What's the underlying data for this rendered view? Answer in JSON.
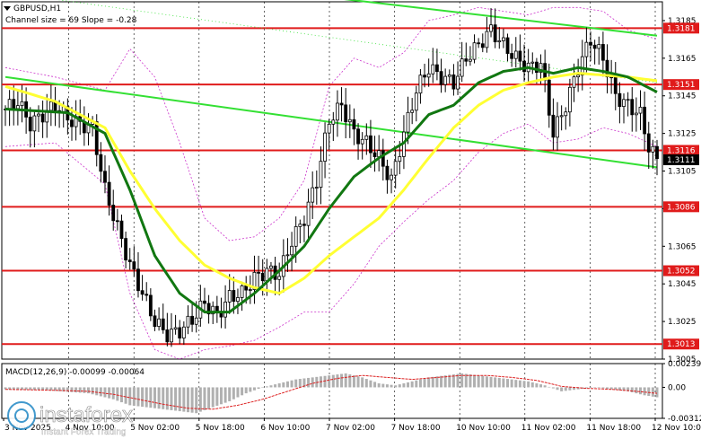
{
  "main": {
    "symbol_line": "GBPUSD,H1",
    "channel_line": "Channel size = 69 Slope = -0.28",
    "current_price": "1.3111"
  },
  "watermark": {
    "brand": "instaforex",
    "tagline": "Instant Forex Trading"
  },
  "colors": {
    "bg": "#ffffff",
    "level_line": "#e01b1b",
    "channel": "#33e033",
    "ma_slow": "#ffff33",
    "ma_fast": "#117711",
    "candle": "#000000",
    "bands": "#cc33cc",
    "macd_hist": "#b0b0b0",
    "macd_signal": "#dd2222"
  },
  "chart_data": [
    {
      "type": "candlestick",
      "symbol": "GBPUSD",
      "timeframe": "H1",
      "ylim": [
        1.3005,
        1.3195
      ],
      "y_ticks": [
        "1.3185",
        "1.3165",
        "1.3145",
        "1.3125",
        "1.3105",
        "1.3085",
        "1.3065",
        "1.3045",
        "1.3025",
        "1.3005"
      ],
      "x_ticks": [
        "3 Nov 2025",
        "4 Nov 10:00",
        "5 Nov 02:00",
        "5 Nov 18:00",
        "6 Nov 10:00",
        "7 Nov 02:00",
        "7 Nov 18:00",
        "10 Nov 10:00",
        "11 Nov 02:00",
        "11 Nov 18:00",
        "12 Nov 10:00"
      ],
      "levels": [
        {
          "value": 1.3181,
          "label": "1.3181"
        },
        {
          "value": 1.3151,
          "label": "1.3151"
        },
        {
          "value": 1.3116,
          "label": "1.3116"
        },
        {
          "value": 1.3086,
          "label": "1.3086"
        },
        {
          "value": 1.3052,
          "label": "1.3052"
        },
        {
          "value": 1.3013,
          "label": "1.3013"
        }
      ],
      "current_price": 1.3111,
      "close_path": [
        [
          0,
          1.3138
        ],
        [
          3,
          1.3142
        ],
        [
          6,
          1.313
        ],
        [
          9,
          1.3135
        ],
        [
          12,
          1.314
        ],
        [
          15,
          1.3133
        ],
        [
          18,
          1.313
        ],
        [
          21,
          1.3128
        ],
        [
          24,
          1.3095
        ],
        [
          27,
          1.3075
        ],
        [
          30,
          1.3055
        ],
        [
          33,
          1.304
        ],
        [
          36,
          1.3025
        ],
        [
          39,
          1.3018
        ],
        [
          42,
          1.302
        ],
        [
          45,
          1.3026
        ],
        [
          48,
          1.3035
        ],
        [
          51,
          1.3028
        ],
        [
          54,
          1.3038
        ],
        [
          57,
          1.304
        ],
        [
          60,
          1.3048
        ],
        [
          63,
          1.3052
        ],
        [
          66,
          1.305
        ],
        [
          69,
          1.3068
        ],
        [
          72,
          1.308
        ],
        [
          75,
          1.31
        ],
        [
          78,
          1.3132
        ],
        [
          81,
          1.314
        ],
        [
          84,
          1.3125
        ],
        [
          87,
          1.312
        ],
        [
          90,
          1.3112
        ],
        [
          93,
          1.31
        ],
        [
          96,
          1.3125
        ],
        [
          99,
          1.3148
        ],
        [
          102,
          1.316
        ],
        [
          105,
          1.3155
        ],
        [
          108,
          1.3152
        ],
        [
          111,
          1.3165
        ],
        [
          114,
          1.3172
        ],
        [
          117,
          1.318
        ],
        [
          120,
          1.3172
        ],
        [
          123,
          1.3165
        ],
        [
          126,
          1.316
        ],
        [
          129,
          1.3162
        ],
        [
          132,
          1.3125
        ],
        [
          135,
          1.314
        ],
        [
          138,
          1.316
        ],
        [
          141,
          1.3175
        ],
        [
          144,
          1.3165
        ],
        [
          147,
          1.3145
        ],
        [
          150,
          1.314
        ],
        [
          153,
          1.3135
        ],
        [
          155,
          1.3118
        ],
        [
          157,
          1.3111
        ]
      ],
      "n_bars": 158,
      "ma_fast": [
        [
          0,
          1.3138
        ],
        [
          15,
          1.3136
        ],
        [
          24,
          1.3125
        ],
        [
          30,
          1.3095
        ],
        [
          36,
          1.306
        ],
        [
          42,
          1.304
        ],
        [
          48,
          1.303
        ],
        [
          54,
          1.303
        ],
        [
          60,
          1.304
        ],
        [
          66,
          1.3052
        ],
        [
          72,
          1.3065
        ],
        [
          78,
          1.3085
        ],
        [
          84,
          1.3102
        ],
        [
          90,
          1.3112
        ],
        [
          96,
          1.312
        ],
        [
          102,
          1.3135
        ],
        [
          108,
          1.314
        ],
        [
          114,
          1.3152
        ],
        [
          120,
          1.3158
        ],
        [
          126,
          1.316
        ],
        [
          132,
          1.3157
        ],
        [
          138,
          1.316
        ],
        [
          144,
          1.3158
        ],
        [
          150,
          1.3155
        ],
        [
          157,
          1.3147
        ]
      ],
      "ma_slow": [
        [
          0,
          1.315
        ],
        [
          12,
          1.3142
        ],
        [
          24,
          1.3128
        ],
        [
          30,
          1.3105
        ],
        [
          36,
          1.3085
        ],
        [
          42,
          1.3068
        ],
        [
          48,
          1.3055
        ],
        [
          54,
          1.3048
        ],
        [
          60,
          1.3043
        ],
        [
          66,
          1.304
        ],
        [
          72,
          1.3048
        ],
        [
          78,
          1.306
        ],
        [
          84,
          1.307
        ],
        [
          90,
          1.308
        ],
        [
          96,
          1.3095
        ],
        [
          102,
          1.3112
        ],
        [
          108,
          1.3128
        ],
        [
          114,
          1.314
        ],
        [
          120,
          1.3148
        ],
        [
          126,
          1.3152
        ],
        [
          132,
          1.3155
        ],
        [
          138,
          1.3157
        ],
        [
          144,
          1.3156
        ],
        [
          150,
          1.3155
        ],
        [
          157,
          1.3153
        ]
      ],
      "band_upper": [
        [
          0,
          1.316
        ],
        [
          12,
          1.3155
        ],
        [
          24,
          1.3148
        ],
        [
          30,
          1.317
        ],
        [
          36,
          1.3155
        ],
        [
          42,
          1.312
        ],
        [
          48,
          1.308
        ],
        [
          54,
          1.3068
        ],
        [
          60,
          1.307
        ],
        [
          66,
          1.308
        ],
        [
          72,
          1.31
        ],
        [
          78,
          1.315
        ],
        [
          84,
          1.3165
        ],
        [
          90,
          1.316
        ],
        [
          96,
          1.3168
        ],
        [
          102,
          1.3185
        ],
        [
          108,
          1.3188
        ],
        [
          114,
          1.3192
        ],
        [
          120,
          1.319
        ],
        [
          126,
          1.3188
        ],
        [
          132,
          1.3192
        ],
        [
          138,
          1.3192
        ],
        [
          144,
          1.319
        ],
        [
          150,
          1.318
        ],
        [
          157,
          1.3175
        ]
      ],
      "band_lower": [
        [
          0,
          1.3118
        ],
        [
          12,
          1.312
        ],
        [
          24,
          1.3098
        ],
        [
          30,
          1.304
        ],
        [
          36,
          1.301
        ],
        [
          42,
          1.3005
        ],
        [
          48,
          1.301
        ],
        [
          54,
          1.3012
        ],
        [
          60,
          1.3015
        ],
        [
          66,
          1.3022
        ],
        [
          72,
          1.303
        ],
        [
          78,
          1.303
        ],
        [
          84,
          1.3045
        ],
        [
          90,
          1.3065
        ],
        [
          96,
          1.3078
        ],
        [
          102,
          1.309
        ],
        [
          108,
          1.31
        ],
        [
          114,
          1.3115
        ],
        [
          120,
          1.3125
        ],
        [
          126,
          1.313
        ],
        [
          132,
          1.312
        ],
        [
          138,
          1.3122
        ],
        [
          144,
          1.3128
        ],
        [
          150,
          1.3125
        ],
        [
          157,
          1.3118
        ]
      ],
      "channel_lines": [
        {
          "from": [
            0,
            1.3155
          ],
          "to": [
            157,
            1.3107
          ]
        },
        {
          "from": [
            60,
            1.3202
          ],
          "to": [
            157,
            1.3177
          ]
        }
      ]
    },
    {
      "type": "macd",
      "title": "MACD(12,26,9) -0.00099 -0.00064",
      "params": [
        12,
        26,
        9
      ],
      "values": {
        "macd": -0.00099,
        "signal": -0.00064
      },
      "ylim": [
        -0.00312,
        0.00239
      ],
      "y_ticks": [
        "0.00239",
        "0.00",
        "-0.00312"
      ],
      "histogram": [
        [
          0,
          -0.0002
        ],
        [
          10,
          -0.0003
        ],
        [
          20,
          -0.0006
        ],
        [
          26,
          -0.0012
        ],
        [
          30,
          -0.0018
        ],
        [
          34,
          -0.002
        ],
        [
          38,
          -0.0022
        ],
        [
          42,
          -0.0024
        ],
        [
          46,
          -0.0026
        ],
        [
          50,
          -0.002
        ],
        [
          54,
          -0.0014
        ],
        [
          58,
          -0.0006
        ],
        [
          62,
          0.0
        ],
        [
          66,
          0.0004
        ],
        [
          70,
          0.0008
        ],
        [
          74,
          0.001
        ],
        [
          78,
          0.0012
        ],
        [
          82,
          0.0014
        ],
        [
          86,
          0.001
        ],
        [
          90,
          0.0004
        ],
        [
          94,
          0.0002
        ],
        [
          98,
          0.0006
        ],
        [
          102,
          0.001
        ],
        [
          106,
          0.0012
        ],
        [
          110,
          0.0014
        ],
        [
          114,
          0.0012
        ],
        [
          118,
          0.001
        ],
        [
          122,
          0.0008
        ],
        [
          126,
          0.0006
        ],
        [
          130,
          0.0002
        ],
        [
          134,
          -0.0004
        ],
        [
          138,
          -0.0002
        ],
        [
          142,
          0.0
        ],
        [
          146,
          -0.0002
        ],
        [
          150,
          -0.0004
        ],
        [
          154,
          -0.0008
        ],
        [
          157,
          -0.001
        ]
      ],
      "signal_line": [
        [
          0,
          -0.0002
        ],
        [
          12,
          -0.0003
        ],
        [
          20,
          -0.0004
        ],
        [
          26,
          -0.0007
        ],
        [
          32,
          -0.0012
        ],
        [
          38,
          -0.0017
        ],
        [
          44,
          -0.0021
        ],
        [
          50,
          -0.0022
        ],
        [
          56,
          -0.0018
        ],
        [
          62,
          -0.0012
        ],
        [
          68,
          -0.0004
        ],
        [
          74,
          0.0004
        ],
        [
          80,
          0.0009
        ],
        [
          86,
          0.0012
        ],
        [
          92,
          0.001
        ],
        [
          98,
          0.0008
        ],
        [
          104,
          0.001
        ],
        [
          110,
          0.0012
        ],
        [
          116,
          0.0012
        ],
        [
          122,
          0.001
        ],
        [
          128,
          0.0007
        ],
        [
          134,
          0.0001
        ],
        [
          140,
          -0.0001
        ],
        [
          146,
          -0.0002
        ],
        [
          152,
          -0.0004
        ],
        [
          157,
          -0.0006
        ]
      ]
    }
  ]
}
